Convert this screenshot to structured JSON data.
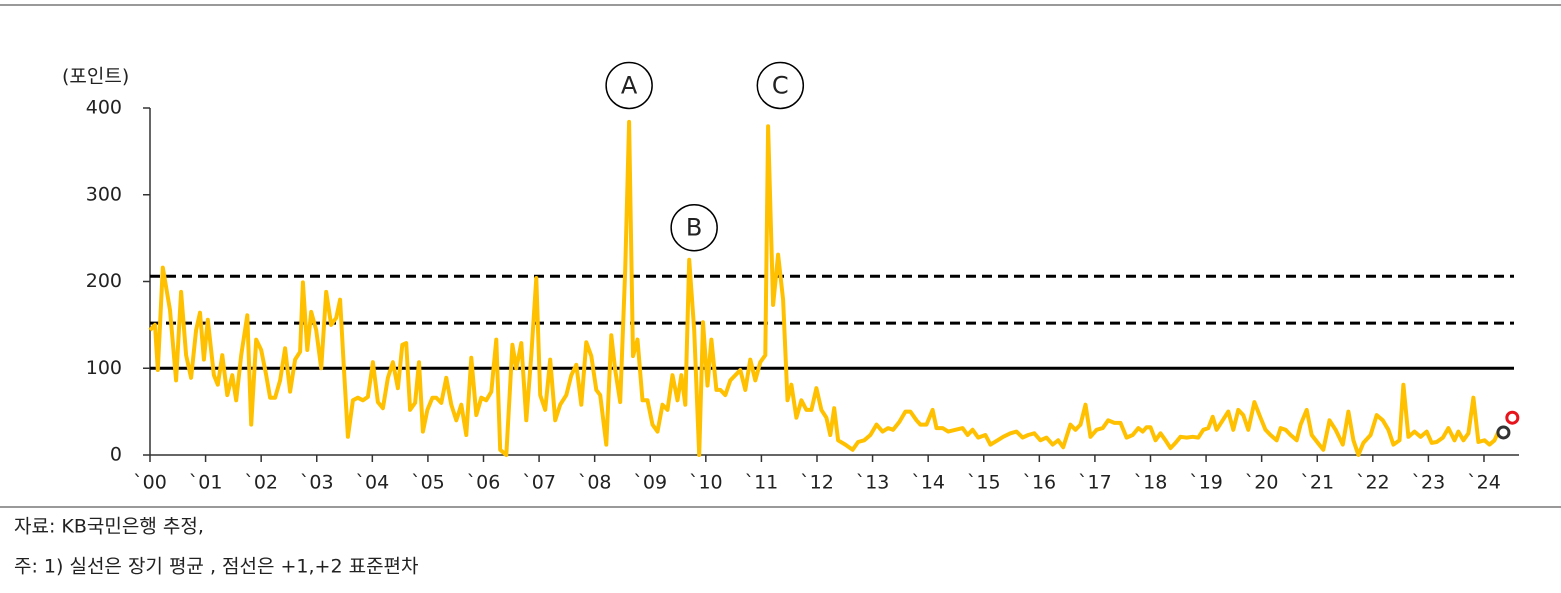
{
  "chart_data": {
    "type": "line",
    "y_label": "(포인트)",
    "source": "자료: KB국민은행 추정,",
    "note": "주: 1) 실선은 장기 평균 , 점선은 +1,+2 표준편차",
    "color": "#ffc000",
    "xlim": [
      2000,
      2024.63
    ],
    "ylim": [
      0,
      400
    ],
    "yticks": [
      0,
      100,
      200,
      300,
      400
    ],
    "xticks": [
      {
        "value": 2000,
        "label": "`00"
      },
      {
        "value": 2001,
        "label": "`01"
      },
      {
        "value": 2002,
        "label": "`02"
      },
      {
        "value": 2003,
        "label": "`03"
      },
      {
        "value": 2004,
        "label": "`04"
      },
      {
        "value": 2005,
        "label": "`05"
      },
      {
        "value": 2006,
        "label": "`06"
      },
      {
        "value": 2007,
        "label": "`07"
      },
      {
        "value": 2008,
        "label": "`08"
      },
      {
        "value": 2009,
        "label": "`09"
      },
      {
        "value": 2010,
        "label": "`10"
      },
      {
        "value": 2011,
        "label": "`11"
      },
      {
        "value": 2012,
        "label": "`12"
      },
      {
        "value": 2013,
        "label": "`13"
      },
      {
        "value": 2014,
        "label": "`14"
      },
      {
        "value": 2015,
        "label": "`15"
      },
      {
        "value": 2016,
        "label": "`16"
      },
      {
        "value": 2017,
        "label": "`17"
      },
      {
        "value": 2018,
        "label": "`18"
      },
      {
        "value": 2019,
        "label": "`19"
      },
      {
        "value": 2020,
        "label": "`20"
      },
      {
        "value": 2021,
        "label": "`21"
      },
      {
        "value": 2022,
        "label": "`22"
      },
      {
        "value": 2023,
        "label": "`23"
      },
      {
        "value": 2024,
        "label": "`24"
      }
    ],
    "reference_lines": [
      {
        "value": 100,
        "style": "solid"
      },
      {
        "value": 152,
        "style": "dashed"
      },
      {
        "value": 206,
        "style": "dashed"
      }
    ],
    "annotations": [
      {
        "text": "A",
        "x": 2008.62,
        "y": 426
      },
      {
        "text": "B",
        "x": 2009.79,
        "y": 262
      },
      {
        "text": "C",
        "x": 2011.34,
        "y": 426
      }
    ],
    "points": [
      {
        "x": 2024.35,
        "y": 26,
        "color": "#333333"
      },
      {
        "x": 2024.51,
        "y": 43,
        "color": "#e8141c"
      }
    ],
    "x": [
      2000,
      2000.09,
      2000.14,
      2000.23,
      2000.36,
      2000.47,
      2000.56,
      2000.65,
      2000.74,
      2000.83,
      2000.9,
      2000.97,
      2001.04,
      2001.15,
      2001.22,
      2001.3,
      2001.39,
      2001.48,
      2001.55,
      2001.64,
      2001.75,
      2001.82,
      2001.91,
      2002,
      2002.09,
      2002.16,
      2002.25,
      2002.34,
      2002.43,
      2002.52,
      2002.61,
      2002.7,
      2002.75,
      2002.83,
      2002.9,
      2002.99,
      2003.08,
      2003.17,
      2003.26,
      2003.35,
      2003.42,
      2003.49,
      2003.56,
      2003.65,
      2003.74,
      2003.83,
      2003.92,
      2004.01,
      2004.1,
      2004.19,
      2004.28,
      2004.37,
      2004.46,
      2004.54,
      2004.61,
      2004.68,
      2004.77,
      2004.84,
      2004.91,
      2004.99,
      2005.08,
      2005.15,
      2005.24,
      2005.33,
      2005.42,
      2005.51,
      2005.6,
      2005.69,
      2005.78,
      2005.87,
      2005.96,
      2006.05,
      2006.14,
      2006.23,
      2006.3,
      2006.41,
      2006.52,
      2006.59,
      2006.68,
      2006.77,
      2006.86,
      2006.95,
      2007.02,
      2007.11,
      2007.2,
      2007.29,
      2007.38,
      2007.49,
      2007.58,
      2007.67,
      2007.76,
      2007.85,
      2007.94,
      2008.03,
      2008.1,
      2008.21,
      2008.3,
      2008.37,
      2008.46,
      2008.55,
      2008.62,
      2008.69,
      2008.77,
      2008.86,
      2008.95,
      2009.04,
      2009.13,
      2009.22,
      2009.31,
      2009.4,
      2009.49,
      2009.56,
      2009.63,
      2009.7,
      2009.79,
      2009.88,
      2009.95,
      2010.03,
      2010.1,
      2010.19,
      2010.26,
      2010.35,
      2010.44,
      2010.53,
      2010.62,
      2010.71,
      2010.8,
      2010.89,
      2010.98,
      2011.07,
      2011.12,
      2011.21,
      2011.3,
      2011.39,
      2011.47,
      2011.54,
      2011.63,
      2011.72,
      2011.81,
      2011.9,
      2011.99,
      2012.08,
      2012.17,
      2012.24,
      2012.31,
      2012.38,
      2012.51,
      2012.64,
      2012.74,
      2012.85,
      2012.96,
      2013.07,
      2013.18,
      2013.28,
      2013.37,
      2013.48,
      2013.59,
      2013.68,
      2013.79,
      2013.86,
      2013.97,
      2014.08,
      2014.15,
      2014.26,
      2014.36,
      2014.49,
      2014.62,
      2014.71,
      2014.8,
      2014.9,
      2015.03,
      2015.12,
      2015.25,
      2015.35,
      2015.48,
      2015.59,
      2015.7,
      2015.8,
      2015.91,
      2016.02,
      2016.13,
      2016.24,
      2016.34,
      2016.43,
      2016.56,
      2016.65,
      2016.74,
      2016.83,
      2016.92,
      2017.03,
      2017.14,
      2017.24,
      2017.35,
      2017.46,
      2017.57,
      2017.68,
      2017.78,
      2017.86,
      2017.93,
      2018,
      2018.09,
      2018.18,
      2018.27,
      2018.36,
      2018.45,
      2018.54,
      2018.65,
      2018.76,
      2018.86,
      2018.95,
      2019.04,
      2019.12,
      2019.19,
      2019.3,
      2019.4,
      2019.49,
      2019.58,
      2019.67,
      2019.76,
      2019.87,
      2019.98,
      2020.07,
      2020.16,
      2020.27,
      2020.34,
      2020.43,
      2020.52,
      2020.63,
      2020.7,
      2020.81,
      2020.9,
      2021.01,
      2021.11,
      2021.22,
      2021.33,
      2021.46,
      2021.56,
      2021.65,
      2021.74,
      2021.83,
      2021.96,
      2022.07,
      2022.18,
      2022.28,
      2022.37,
      2022.48,
      2022.55,
      2022.64,
      2022.75,
      2022.86,
      2022.97,
      2023.06,
      2023.15,
      2023.26,
      2023.36,
      2023.47,
      2023.54,
      2023.63,
      2023.72,
      2023.81,
      2023.9,
      2024.01,
      2024.1,
      2024.19,
      2024.26
    ],
    "values": [
      144,
      150,
      98,
      216,
      167,
      86,
      188,
      115,
      89,
      144,
      164,
      110,
      156,
      92,
      81,
      115,
      69,
      92,
      63,
      115,
      161,
      35,
      133,
      121,
      92,
      66,
      66,
      86,
      123,
      73,
      110,
      119,
      199,
      121,
      165,
      144,
      100,
      188,
      150,
      158,
      179,
      98,
      21,
      63,
      66,
      63,
      67,
      107,
      61,
      54,
      89,
      107,
      77,
      127,
      129,
      52,
      60,
      107,
      27,
      52,
      66,
      66,
      60,
      89,
      58,
      40,
      58,
      23,
      112,
      46,
      66,
      63,
      73,
      133,
      6,
      0,
      127,
      100,
      129,
      40,
      115,
      204,
      69,
      52,
      110,
      40,
      58,
      69,
      92,
      104,
      58,
      130,
      114,
      75,
      69,
      12,
      138,
      98,
      61,
      213,
      384,
      114,
      133,
      63,
      63,
      35,
      27,
      58,
      52,
      92,
      63,
      92,
      58,
      225,
      144,
      0,
      153,
      80,
      133,
      75,
      75,
      69,
      86,
      92,
      98,
      75,
      110,
      86,
      107,
      115,
      379,
      173,
      231,
      179,
      63,
      81,
      43,
      63,
      52,
      52,
      77,
      52,
      43,
      23,
      54,
      17,
      12,
      6,
      15,
      17,
      23,
      35,
      27,
      31,
      29,
      38,
      50,
      50,
      40,
      35,
      35,
      52,
      31,
      31,
      27,
      29,
      31,
      23,
      29,
      20,
      23,
      12,
      17,
      21,
      25,
      27,
      20,
      23,
      25,
      17,
      20,
      12,
      17,
      9,
      35,
      29,
      35,
      58,
      21,
      29,
      31,
      40,
      37,
      37,
      20,
      23,
      31,
      27,
      32,
      32,
      17,
      25,
      17,
      8,
      14,
      21,
      20,
      21,
      20,
      29,
      31,
      44,
      29,
      40,
      50,
      29,
      52,
      46,
      29,
      61,
      43,
      29,
      23,
      17,
      31,
      29,
      23,
      17,
      35,
      52,
      23,
      14,
      6,
      40,
      29,
      12,
      50,
      17,
      0,
      14,
      23,
      46,
      40,
      29,
      12,
      17,
      81,
      21,
      27,
      21,
      27,
      14,
      15,
      20,
      31,
      17,
      27,
      17,
      25,
      66,
      15,
      17,
      12,
      17,
      27
    ]
  }
}
